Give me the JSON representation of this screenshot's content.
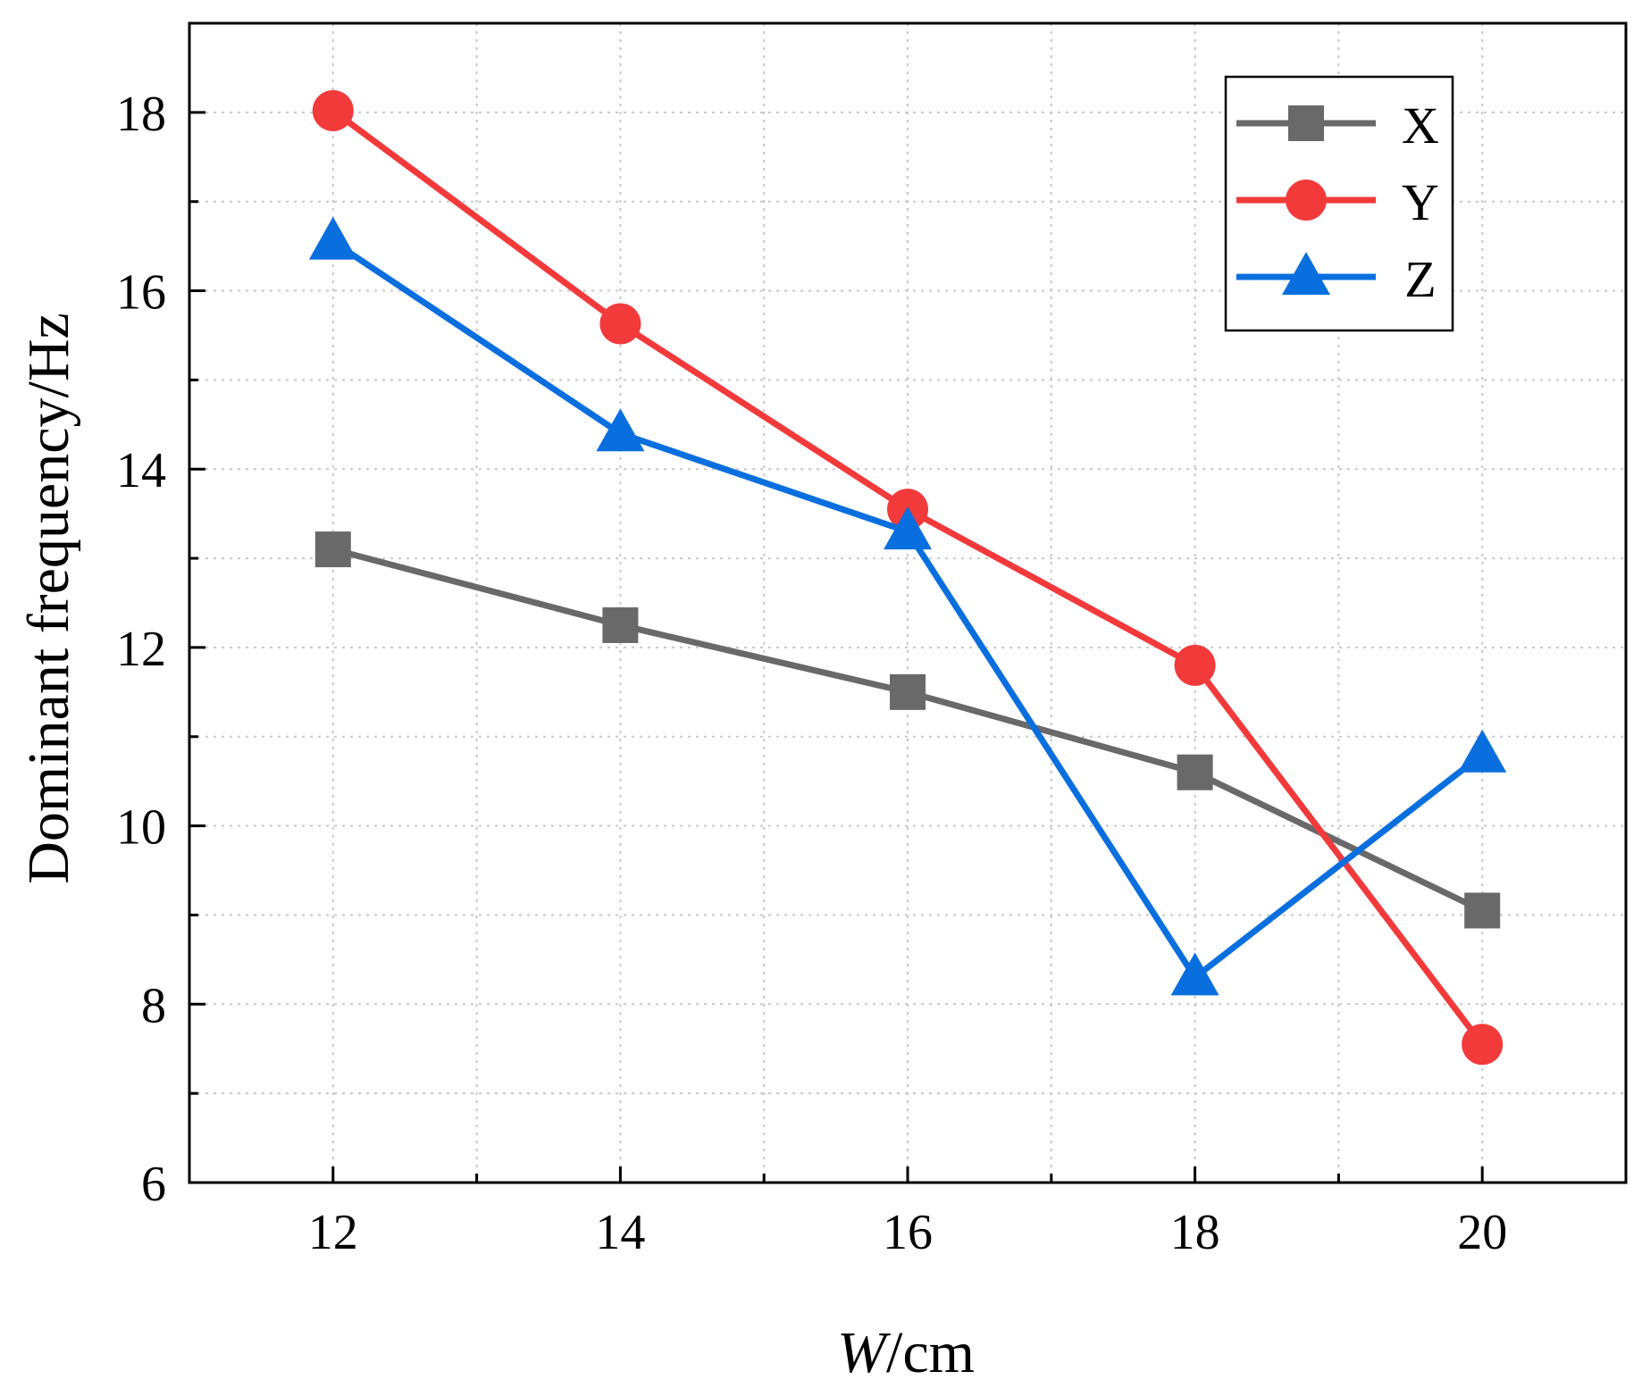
{
  "chart_data": {
    "type": "line",
    "title": "",
    "xlabel_italic": "W",
    "xlabel_rest": "/cm",
    "ylabel": "Dominant frequency/Hz",
    "x": [
      12,
      14,
      16,
      18,
      20
    ],
    "xlim": [
      11,
      21
    ],
    "ylim": [
      6,
      19
    ],
    "xticks": [
      12,
      14,
      16,
      18,
      20
    ],
    "yticks": [
      6,
      8,
      10,
      12,
      14,
      16,
      18
    ],
    "grid": true,
    "legend_position": "top-right",
    "series": [
      {
        "name": "X",
        "color": "#696969",
        "marker": "square",
        "values": [
          13.1,
          12.25,
          11.5,
          10.6,
          9.05
        ]
      },
      {
        "name": "Y",
        "color": "#f23a3a",
        "marker": "circle",
        "values": [
          18.02,
          15.63,
          13.55,
          11.8,
          7.55
        ]
      },
      {
        "name": "Z",
        "color": "#0a6fde",
        "marker": "triangle",
        "values": [
          16.55,
          14.4,
          13.3,
          8.3,
          10.8
        ]
      }
    ]
  }
}
